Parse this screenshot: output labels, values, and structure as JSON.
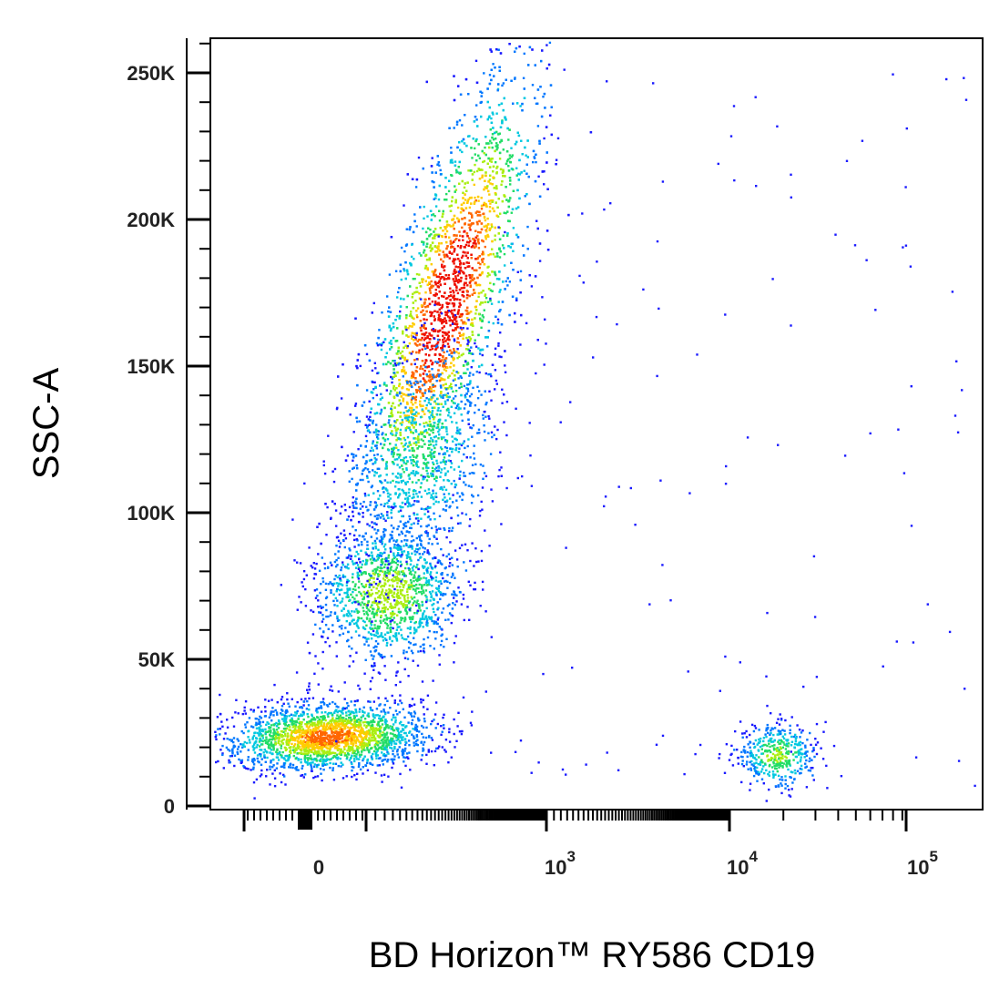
{
  "chart_data": {
    "type": "scatter",
    "subtype": "flow-cytometry-density-dot-plot",
    "xlabel": "BD Horizon™ RY586 CD19",
    "ylabel": "SSC-A",
    "x_scale": "biexponential",
    "y_scale": "linear",
    "ylim": [
      0,
      262144
    ],
    "xlim": [
      -300,
      200000
    ],
    "x_ticks": [
      {
        "value": 0,
        "base": "0",
        "exp": ""
      },
      {
        "value": 1000,
        "base": "10",
        "exp": "3"
      },
      {
        "value": 10000,
        "base": "10",
        "exp": "4"
      },
      {
        "value": 100000,
        "base": "10",
        "exp": "5"
      }
    ],
    "y_ticks": [
      {
        "value": 0,
        "label": "0"
      },
      {
        "value": 50000,
        "label": "50K"
      },
      {
        "value": 100000,
        "label": "100K"
      },
      {
        "value": 150000,
        "label": "150K"
      },
      {
        "value": 200000,
        "label": "200K"
      },
      {
        "value": 250000,
        "label": "250K"
      }
    ],
    "grid": false,
    "legend": "none",
    "density_colormap": [
      "#1a1aff",
      "#0077ff",
      "#00c8e0",
      "#22dd66",
      "#aaee11",
      "#ffcc00",
      "#ff6600",
      "#ee1100"
    ],
    "populations": [
      {
        "x_center": 50,
        "y_center": 23000,
        "density": "high"
      },
      {
        "x_center": 180,
        "y_center": 72000,
        "density": "medium"
      },
      {
        "x_center": 350,
        "y_center": 170000,
        "density": "highest"
      },
      {
        "x_center": 17000,
        "y_center": 17000,
        "density": "medium"
      }
    ]
  }
}
